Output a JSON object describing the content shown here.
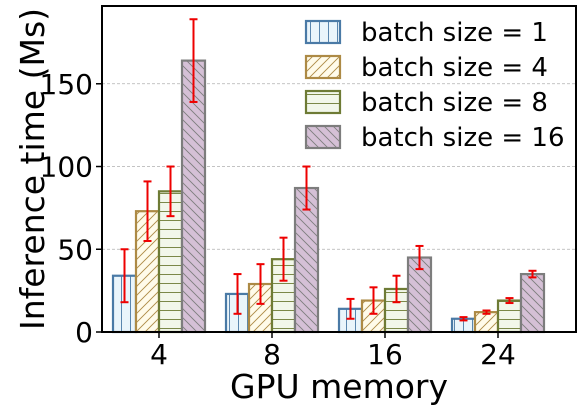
{
  "chart_data": {
    "type": "bar",
    "xlabel": "GPU memory",
    "ylabel": "Inference time (Ms)",
    "categories": [
      "4",
      "8",
      "16",
      "24"
    ],
    "ylim": [
      0,
      197
    ],
    "yticks": [
      0,
      50,
      100,
      150
    ],
    "grid": {
      "y": true,
      "style": "dashed"
    },
    "legend_position": "top-right",
    "series": [
      {
        "name": "batch size = 1",
        "values": [
          34,
          23,
          14,
          8
        ],
        "errors": [
          16,
          12,
          6,
          1
        ],
        "edge_color": "#4a7aa6",
        "fill_color": "#eaf5fb",
        "hatch": "vertical"
      },
      {
        "name": "batch size = 4",
        "values": [
          73,
          29,
          19,
          12
        ],
        "errors": [
          18,
          12,
          8,
          1
        ],
        "edge_color": "#ad8a45",
        "fill_color": "#fffbea",
        "hatch": "diagonal"
      },
      {
        "name": "batch size = 8",
        "values": [
          85,
          44,
          26,
          19
        ],
        "errors": [
          15,
          13,
          8,
          1.5
        ],
        "edge_color": "#6e7b35",
        "fill_color": "#f2f7ea",
        "hatch": "horizontal"
      },
      {
        "name": "batch size = 16",
        "values": [
          164,
          87,
          45,
          35
        ],
        "errors": [
          25,
          13,
          7,
          2
        ],
        "edge_color": "#7d7d7d",
        "fill_color": "#d5c0d6",
        "hatch": "backdiagonal"
      }
    ],
    "error_bar_color": "#ee0000"
  }
}
